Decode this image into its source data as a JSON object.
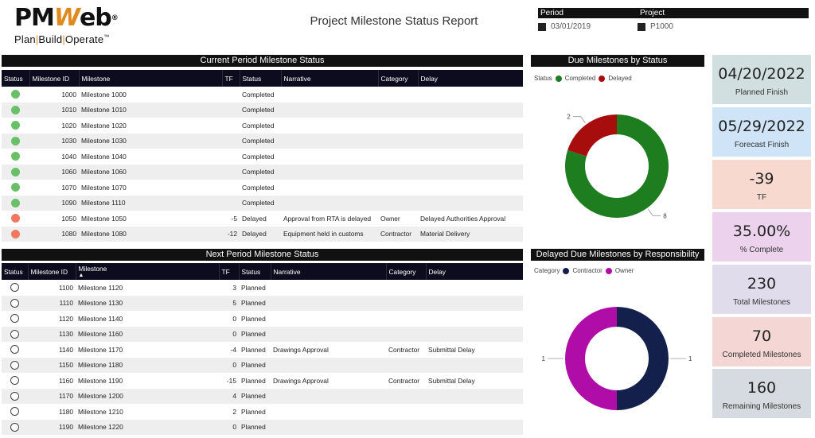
{
  "logo": {
    "brand_a": "PM",
    "brand_w": "W",
    "brand_b": "eb",
    "reg": "®",
    "tagline_plan": "Plan",
    "tagline_build": "Build",
    "tagline_operate": "Operate",
    "tm": "™"
  },
  "title": "Project Milestone Status Report",
  "slicers": {
    "period": {
      "label": "Period",
      "value": "03/01/2019"
    },
    "project": {
      "label": "Project",
      "value": "P1000"
    }
  },
  "current_table": {
    "title": "Current Period Milestone Status",
    "headers": [
      "Status",
      "Milestone ID",
      "Milestone",
      "TF",
      "Status",
      "Narrative",
      "Category",
      "Delay"
    ],
    "rows": [
      {
        "dot": "green",
        "id": "1000",
        "name": "Milestone 1000",
        "tf": "",
        "status": "Completed",
        "narrative": "",
        "category": "",
        "delay": ""
      },
      {
        "dot": "green",
        "id": "1010",
        "name": "Milestone 1010",
        "tf": "",
        "status": "Completed",
        "narrative": "",
        "category": "",
        "delay": ""
      },
      {
        "dot": "green",
        "id": "1020",
        "name": "Milestone 1020",
        "tf": "",
        "status": "Completed",
        "narrative": "",
        "category": "",
        "delay": ""
      },
      {
        "dot": "green",
        "id": "1030",
        "name": "Milestone 1030",
        "tf": "",
        "status": "Completed",
        "narrative": "",
        "category": "",
        "delay": ""
      },
      {
        "dot": "green",
        "id": "1040",
        "name": "Milestone 1040",
        "tf": "",
        "status": "Completed",
        "narrative": "",
        "category": "",
        "delay": ""
      },
      {
        "dot": "green",
        "id": "1060",
        "name": "Milestone 1060",
        "tf": "",
        "status": "Completed",
        "narrative": "",
        "category": "",
        "delay": ""
      },
      {
        "dot": "green",
        "id": "1070",
        "name": "Milestone 1070",
        "tf": "",
        "status": "Completed",
        "narrative": "",
        "category": "",
        "delay": ""
      },
      {
        "dot": "green",
        "id": "1090",
        "name": "Milestone 1110",
        "tf": "",
        "status": "Completed",
        "narrative": "",
        "category": "",
        "delay": ""
      },
      {
        "dot": "red",
        "id": "1050",
        "name": "Milestone 1050",
        "tf": "-5",
        "status": "Delayed",
        "narrative": "Approval from RTA is delayed",
        "category": "Owner",
        "delay": "Delayed Authorities Approval"
      },
      {
        "dot": "red",
        "id": "1080",
        "name": "Milestone 1080",
        "tf": "-12",
        "status": "Delayed",
        "narrative": "Equipment held in customs",
        "category": "Contractor",
        "delay": "Material Delivery"
      }
    ]
  },
  "next_table": {
    "title": "Next Period Milestone Status",
    "headers": [
      "Status",
      "Milestone ID",
      "Milestone",
      "TF",
      "Status",
      "Narrative",
      "Category",
      "Delay"
    ],
    "sort_indicator": "▲",
    "rows": [
      {
        "id": "1100",
        "name": "Milestone 1120",
        "tf": "3",
        "status": "Planned",
        "narrative": "",
        "category": "",
        "delay": ""
      },
      {
        "id": "1110",
        "name": "Milestone 1130",
        "tf": "5",
        "status": "Planned",
        "narrative": "",
        "category": "",
        "delay": ""
      },
      {
        "id": "1120",
        "name": "Milestone 1140",
        "tf": "0",
        "status": "Planned",
        "narrative": "",
        "category": "",
        "delay": ""
      },
      {
        "id": "1130",
        "name": "Milestone 1160",
        "tf": "0",
        "status": "Planned",
        "narrative": "",
        "category": "",
        "delay": ""
      },
      {
        "id": "1140",
        "name": "Milestone 1170",
        "tf": "-4",
        "status": "Planned",
        "narrative": "Drawings Approval",
        "category": "Contractor",
        "delay": "Submittal Delay"
      },
      {
        "id": "1150",
        "name": "Milestone 1180",
        "tf": "0",
        "status": "Planned",
        "narrative": "",
        "category": "",
        "delay": ""
      },
      {
        "id": "1160",
        "name": "Milestone 1190",
        "tf": "-15",
        "status": "Planned",
        "narrative": "Drawings Approval",
        "category": "Contractor",
        "delay": "Submittal Delay"
      },
      {
        "id": "1170",
        "name": "Milestone 1200",
        "tf": "4",
        "status": "Planned",
        "narrative": "",
        "category": "",
        "delay": ""
      },
      {
        "id": "1180",
        "name": "Milestone 1210",
        "tf": "2",
        "status": "Planned",
        "narrative": "",
        "category": "",
        "delay": ""
      },
      {
        "id": "1190",
        "name": "Milestone 1220",
        "tf": "0",
        "status": "Planned",
        "narrative": "",
        "category": "",
        "delay": ""
      }
    ]
  },
  "donut_status": {
    "title": "Due Milestones by Status",
    "legend_title": "Status",
    "slices": [
      {
        "name": "Completed",
        "value": 8,
        "color": "#1e7d1e"
      },
      {
        "name": "Delayed",
        "value": 2,
        "color": "#a80d0d"
      }
    ]
  },
  "donut_resp": {
    "title": "Delayed Due Milestones by Responsibility",
    "legend_title": "Category",
    "slices": [
      {
        "name": "Contractor",
        "value": 1,
        "color": "#14204c"
      },
      {
        "name": "Owner",
        "value": 1,
        "color": "#b00da8"
      }
    ]
  },
  "kpis": [
    {
      "value": "04/20/2022",
      "label": "Planned Finish",
      "bg": "#d2dfe0"
    },
    {
      "value": "05/29/2022",
      "label": "Forecast Finish",
      "bg": "#cfe4f7"
    },
    {
      "value": "-39",
      "label": "TF",
      "bg": "#f7d9d0"
    },
    {
      "value": "35.00%",
      "label": "% Complete",
      "bg": "#ecd2ec"
    },
    {
      "value": "230",
      "label": "Total Milestones",
      "bg": "#e0dcec"
    },
    {
      "value": "70",
      "label": "Completed Milestones",
      "bg": "#f4d6d5"
    },
    {
      "value": "160",
      "label": "Remaining Milestones",
      "bg": "#d5dbe0"
    }
  ]
}
